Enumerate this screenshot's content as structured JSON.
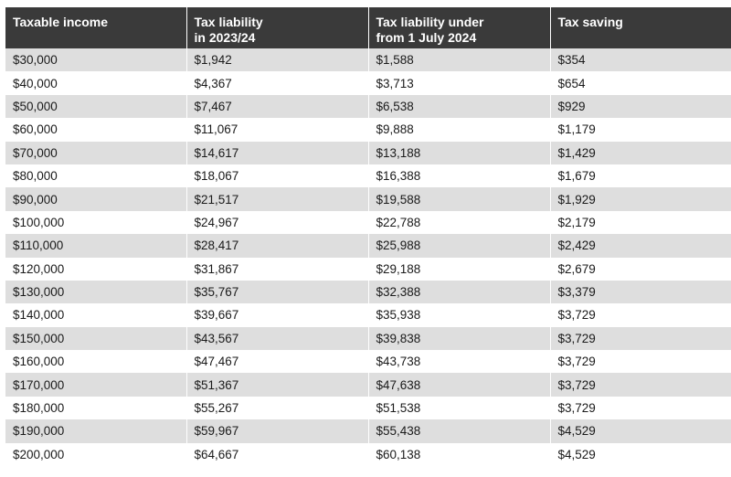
{
  "table": {
    "headers": [
      [
        "Taxable income"
      ],
      [
        "Tax liability",
        "in 2023/24"
      ],
      [
        "Tax liability under",
        "from 1 July 2024"
      ],
      [
        "Tax saving"
      ]
    ],
    "rows": [
      [
        "$30,000",
        "$1,942",
        "$1,588",
        "$354"
      ],
      [
        "$40,000",
        "$4,367",
        "$3,713",
        "$654"
      ],
      [
        "$50,000",
        "$7,467",
        "$6,538",
        "$929"
      ],
      [
        "$60,000",
        "$11,067",
        "$9,888",
        "$1,179"
      ],
      [
        "$70,000",
        "$14,617",
        "$13,188",
        "$1,429"
      ],
      [
        "$80,000",
        "$18,067",
        "$16,388",
        "$1,679"
      ],
      [
        "$90,000",
        "$21,517",
        "$19,588",
        "$1,929"
      ],
      [
        "$100,000",
        "$24,967",
        "$22,788",
        "$2,179"
      ],
      [
        "$110,000",
        "$28,417",
        "$25,988",
        "$2,429"
      ],
      [
        "$120,000",
        "$31,867",
        "$29,188",
        "$2,679"
      ],
      [
        "$130,000",
        "$35,767",
        "$32,388",
        "$3,379"
      ],
      [
        "$140,000",
        "$39,667",
        "$35,938",
        "$3,729"
      ],
      [
        "$150,000",
        "$43,567",
        "$39,838",
        "$3,729"
      ],
      [
        "$160,000",
        "$47,467",
        "$43,738",
        "$3,729"
      ],
      [
        "$170,000",
        "$51,367",
        "$47,638",
        "$3,729"
      ],
      [
        "$180,000",
        "$55,267",
        "$51,538",
        "$3,729"
      ],
      [
        "$190,000",
        "$59,967",
        "$55,438",
        "$4,529"
      ],
      [
        "$200,000",
        "$64,667",
        "$60,138",
        "$4,529"
      ]
    ]
  },
  "colors": {
    "header_bg": "#3a3a3a",
    "header_text": "#ffffff",
    "stripe_bg": "#dedede",
    "row_bg": "#ffffff"
  }
}
